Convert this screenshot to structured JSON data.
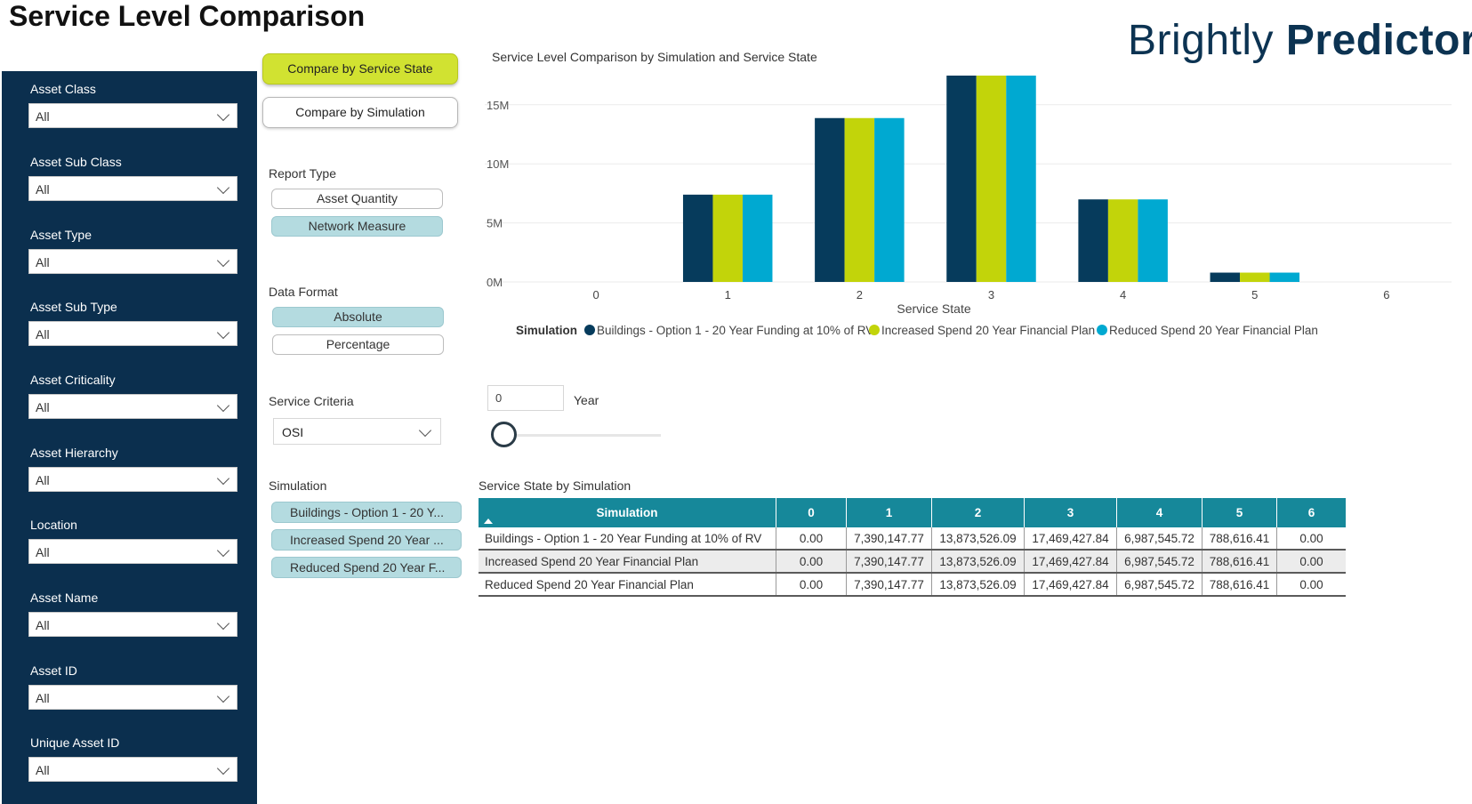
{
  "header": {
    "title": "Service Level Comparison",
    "brand_part1": "Brightly ",
    "brand_part2": "Predictor"
  },
  "slicers": [
    {
      "label": "Asset Class",
      "value": "All"
    },
    {
      "label": "Asset Sub Class",
      "value": "All"
    },
    {
      "label": "Asset Type",
      "value": "All"
    },
    {
      "label": "Asset Sub Type",
      "value": "All"
    },
    {
      "label": "Asset Criticality",
      "value": "All"
    },
    {
      "label": "Asset Hierarchy",
      "value": "All"
    },
    {
      "label": "Location",
      "value": "All"
    },
    {
      "label": "Asset Name",
      "value": "All"
    },
    {
      "label": "Asset ID",
      "value": "All"
    },
    {
      "label": "Unique Asset ID",
      "value": "All"
    }
  ],
  "compare": {
    "by_state_label": "Compare by Service State",
    "by_simulation_label": "Compare by Simulation",
    "active": "by_state"
  },
  "report_type": {
    "label": "Report Type",
    "options": [
      "Asset Quantity",
      "Network Measure"
    ],
    "selected": "Network Measure"
  },
  "data_format": {
    "label": "Data Format",
    "options": [
      "Absolute",
      "Percentage"
    ],
    "selected": "Absolute"
  },
  "service_criteria": {
    "label": "Service Criteria",
    "value": "OSI"
  },
  "simulation_filter": {
    "label": "Simulation",
    "items": [
      "Buildings - Option 1 - 20 Y...",
      "Increased Spend 20 Year ...",
      "Reduced Spend 20 Year F..."
    ]
  },
  "year": {
    "value": "0",
    "label": "Year",
    "slider_level": 0
  },
  "chart_data": {
    "type": "bar",
    "title": "Service Level Comparison by Simulation and Service State",
    "xlabel": "Service State",
    "ylabel": "Network Measure",
    "categories": [
      "0",
      "1",
      "2",
      "3",
      "4",
      "5",
      "6"
    ],
    "yticks": [
      "0M",
      "5M",
      "10M",
      "15M"
    ],
    "ylim": [
      0,
      17469427.84
    ],
    "grid": true,
    "legend_title": "Simulation",
    "legend_position": "bottom",
    "series": [
      {
        "name": "Buildings - Option 1 - 20 Year Funding at 10% of RV",
        "color": "#063b5c",
        "values": [
          0,
          7390147.77,
          13873526.09,
          17469427.84,
          6987545.72,
          788616.41,
          0
        ]
      },
      {
        "name": "Increased Spend 20 Year Financial Plan",
        "color": "#c2d40a",
        "values": [
          0,
          7390147.77,
          13873526.09,
          17469427.84,
          6987545.72,
          788616.41,
          0
        ]
      },
      {
        "name": "Reduced Spend 20 Year Financial Plan",
        "color": "#00a9d1",
        "values": [
          0,
          7390147.77,
          13873526.09,
          17469427.84,
          6987545.72,
          788616.41,
          0
        ]
      }
    ]
  },
  "table": {
    "title": "Service State by Simulation",
    "headers": [
      "Simulation",
      "0",
      "1",
      "2",
      "3",
      "4",
      "5",
      "6"
    ],
    "rows": [
      [
        "Buildings - Option 1 - 20 Year Funding at 10% of RV",
        "0.00",
        "7,390,147.77",
        "13,873,526.09",
        "17,469,427.84",
        "6,987,545.72",
        "788,616.41",
        "0.00"
      ],
      [
        "Increased Spend 20 Year Financial Plan",
        "0.00",
        "7,390,147.77",
        "13,873,526.09",
        "17,469,427.84",
        "6,987,545.72",
        "788,616.41",
        "0.00"
      ],
      [
        "Reduced Spend 20 Year Financial Plan",
        "0.00",
        "7,390,147.77",
        "13,873,526.09",
        "17,469,427.84",
        "6,987,545.72",
        "788,616.41",
        "0.00"
      ]
    ]
  }
}
